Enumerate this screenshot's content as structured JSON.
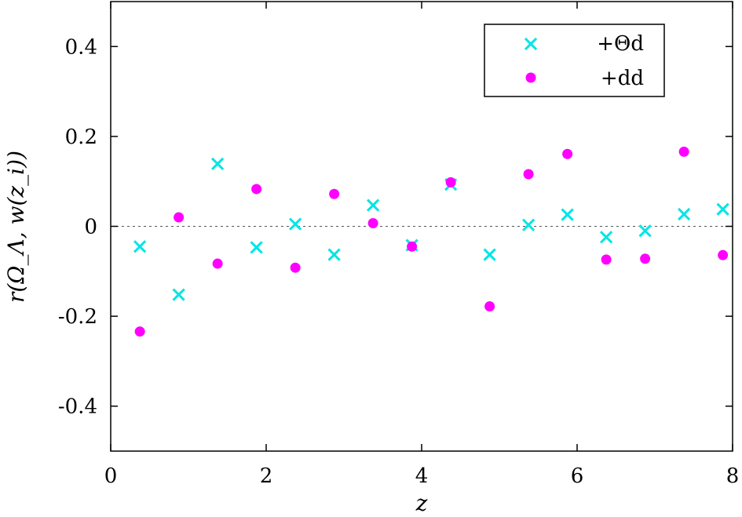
{
  "chart_data": {
    "type": "scatter",
    "xlabel": "z",
    "ylabel": "r(Ω_Λ, w(z_i))",
    "xlim": [
      0,
      8
    ],
    "ylim": [
      -0.5,
      0.5
    ],
    "xticks": [
      "0",
      "2",
      "4",
      "6",
      "8"
    ],
    "yticks": [
      "-0.4",
      "-0.2",
      "0",
      "0.2",
      "0.4"
    ],
    "xtick_values": [
      0,
      2,
      4,
      6,
      8
    ],
    "ytick_values": [
      -0.4,
      -0.2,
      0,
      0.2,
      0.4
    ],
    "zero_line": true,
    "grid": false,
    "legend_position": "top-right",
    "series": [
      {
        "name": "+Θd",
        "marker": "x",
        "color": "#00e5e5",
        "x": [
          0.375,
          0.875,
          1.375,
          1.875,
          2.375,
          2.875,
          3.375,
          3.875,
          4.375,
          4.875,
          5.375,
          5.875,
          6.375,
          6.875,
          7.375,
          7.875
        ],
        "y": [
          -0.045,
          -0.152,
          0.139,
          -0.047,
          0.005,
          -0.063,
          0.047,
          -0.042,
          0.093,
          -0.063,
          0.003,
          0.026,
          -0.024,
          -0.01,
          0.027,
          0.038
        ]
      },
      {
        "name": "+dd",
        "marker": "circle",
        "color": "#ff00ff",
        "x": [
          0.375,
          0.875,
          1.375,
          1.875,
          2.375,
          2.875,
          3.375,
          3.875,
          4.375,
          4.875,
          5.375,
          5.875,
          6.375,
          6.875,
          7.375,
          7.875
        ],
        "y": [
          -0.234,
          0.02,
          -0.083,
          0.083,
          -0.092,
          0.072,
          0.007,
          -0.045,
          0.098,
          -0.178,
          0.116,
          0.161,
          -0.074,
          -0.072,
          0.166,
          -0.064
        ]
      }
    ]
  }
}
